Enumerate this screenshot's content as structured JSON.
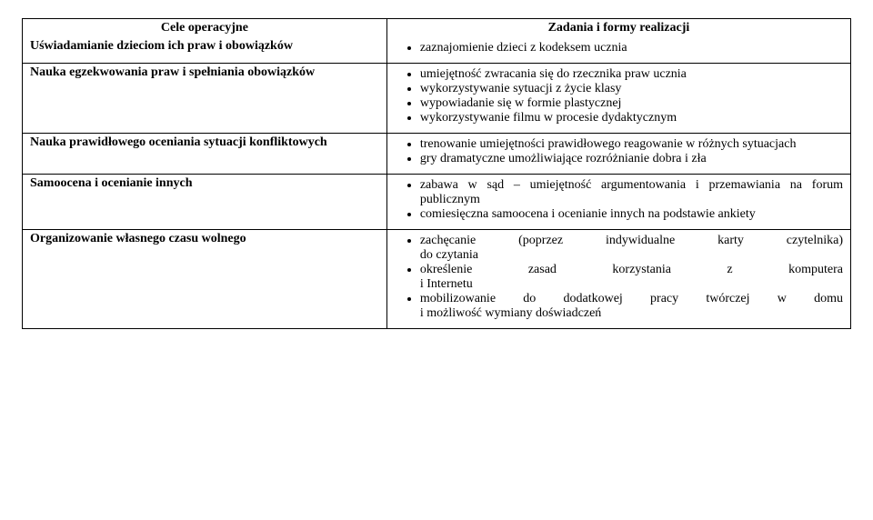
{
  "colors": {
    "border": "#000000",
    "text": "#000000",
    "bg": "#ffffff"
  },
  "font": {
    "family": "Times New Roman",
    "size_pt": 11
  },
  "table": {
    "header": {
      "left": "Cele operacyjne",
      "right": "Zadania i formy realizacji"
    },
    "rows": [
      {
        "left": "Uświadamianie dzieciom ich praw i obowiązków",
        "right": [
          "zaznajomienie dzieci z kodeksem ucznia"
        ]
      },
      {
        "left": "Nauka egzekwowania praw i spełniania obowiązków",
        "right": [
          "umiejętność zwracania się do rzecznika praw ucznia",
          "wykorzystywanie sytuacji z życie klasy",
          "wypowiadanie się w formie plastycznej",
          "wykorzystywanie filmu w procesie dydaktycznym"
        ]
      },
      {
        "left": "Nauka prawidłowego oceniania sytuacji konfliktowych",
        "right": [
          "trenowanie umiejętności prawidłowego reagowanie w różnych sytuacjach",
          "gry dramatyczne umożliwiające rozróżnianie dobra i zła"
        ]
      },
      {
        "left": "Samoocena i ocenianie innych",
        "right": [
          "zabawa w sąd – umiejętność argumentowania i przemawiania na forum publicznym",
          "comiesięczna samoocena i ocenianie innych na podstawie ankiety"
        ]
      },
      {
        "left": "Organizowanie własnego czasu wolnego",
        "right_justified": [
          {
            "line1": "zachęcanie (poprzez indywidualne karty czytelnika)",
            "line2": "do czytania"
          },
          {
            "line1": "określenie zasad korzystania z komputera",
            "line2": "i Internetu"
          },
          {
            "line1": "mobilizowanie do dodatkowej pracy twórczej w domu",
            "line2": "i możliwość wymiany doświadczeń"
          }
        ]
      }
    ]
  }
}
